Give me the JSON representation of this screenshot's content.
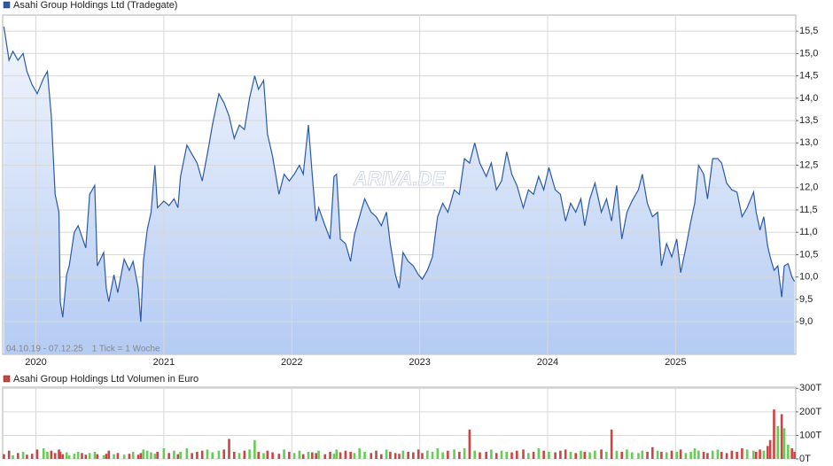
{
  "chart_data": [
    {
      "type": "area",
      "watermark": "ARIVA.DE",
      "annotations": [
        "04.10.19 - 07.12.25",
        "1 Tick = 1 Woche"
      ],
      "x": [
        2019.75,
        2019.79,
        2019.82,
        2019.86,
        2019.9,
        2019.93,
        2019.97,
        2020.01,
        2020.06,
        2020.09,
        2020.12,
        2020.15,
        2020.18,
        2020.19,
        2020.21,
        2020.24,
        2020.26,
        2020.3,
        2020.33,
        2020.36,
        2020.39,
        2020.42,
        2020.46,
        2020.48,
        2020.53,
        2020.55,
        2020.57,
        2020.61,
        2020.64,
        2020.69,
        2020.73,
        2020.76,
        2020.8,
        2020.82,
        2020.84,
        2020.87,
        2020.9,
        2020.93,
        2020.95,
        2021.0,
        2021.04,
        2021.08,
        2021.11,
        2021.13,
        2021.18,
        2021.22,
        2021.26,
        2021.3,
        2021.34,
        2021.38,
        2021.43,
        2021.47,
        2021.51,
        2021.55,
        2021.59,
        2021.63,
        2021.67,
        2021.71,
        2021.74,
        2021.78,
        2021.81,
        2021.85,
        2021.9,
        2021.94,
        2021.98,
        2022.02,
        2022.06,
        2022.09,
        2022.13,
        2022.16,
        2022.19,
        2022.21,
        2022.26,
        2022.3,
        2022.33,
        2022.35,
        2022.38,
        2022.42,
        2022.46,
        2022.49,
        2022.53,
        2022.57,
        2022.62,
        2022.66,
        2022.7,
        2022.74,
        2022.77,
        2022.81,
        2022.84,
        2022.87,
        2022.91,
        2022.95,
        2022.99,
        2023.02,
        2023.06,
        2023.1,
        2023.14,
        2023.18,
        2023.22,
        2023.27,
        2023.31,
        2023.35,
        2023.39,
        2023.43,
        2023.47,
        2023.52,
        2023.56,
        2023.6,
        2023.64,
        2023.68,
        2023.72,
        2023.76,
        2023.81,
        2023.85,
        2023.89,
        2023.93,
        2023.97,
        2024.01,
        2024.06,
        2024.1,
        2024.14,
        2024.18,
        2024.22,
        2024.26,
        2024.29,
        2024.33,
        2024.37,
        2024.42,
        2024.46,
        2024.5,
        2024.54,
        2024.58,
        2024.62,
        2024.66,
        2024.71,
        2024.74,
        2024.78,
        2024.82,
        2024.86,
        2024.89,
        2024.93,
        2024.97,
        2025.01,
        2025.04,
        2025.08,
        2025.12,
        2025.15,
        2025.18,
        2025.22,
        2025.25,
        2025.29,
        2025.33,
        2025.36,
        2025.4,
        2025.44,
        2025.48,
        2025.52,
        2025.56,
        2025.61,
        2025.63,
        2025.66,
        2025.69,
        2025.72,
        2025.74,
        2025.77,
        2025.8,
        2025.83,
        2025.85,
        2025.88,
        2025.91,
        2025.93
      ],
      "series": [
        {
          "name": "Asahi Group Holdings Ltd (Tradegate)",
          "color": "#2a5aa8",
          "values": [
            15.6,
            14.85,
            15.05,
            14.85,
            15.0,
            14.6,
            14.3,
            14.1,
            14.45,
            14.6,
            13.6,
            11.85,
            11.45,
            9.45,
            9.1,
            10.05,
            10.25,
            11.0,
            11.15,
            10.9,
            10.65,
            11.85,
            12.05,
            10.25,
            10.55,
            9.75,
            9.45,
            10.05,
            9.65,
            10.4,
            10.15,
            10.35,
            9.75,
            9.0,
            10.35,
            11.05,
            11.45,
            12.5,
            11.55,
            11.7,
            11.6,
            11.75,
            11.55,
            12.25,
            12.95,
            12.75,
            12.55,
            12.15,
            12.75,
            13.4,
            14.1,
            13.9,
            13.6,
            13.1,
            13.4,
            13.3,
            14.0,
            14.5,
            14.2,
            14.4,
            13.2,
            12.7,
            11.85,
            12.3,
            12.15,
            12.3,
            12.5,
            12.3,
            13.4,
            12.3,
            11.25,
            11.55,
            11.15,
            10.85,
            12.25,
            12.3,
            10.85,
            10.75,
            10.35,
            10.95,
            11.35,
            11.75,
            11.45,
            11.35,
            11.15,
            11.45,
            10.75,
            10.05,
            9.75,
            10.55,
            10.35,
            10.25,
            10.05,
            9.95,
            10.15,
            10.45,
            11.35,
            11.65,
            11.45,
            11.95,
            11.85,
            12.65,
            12.55,
            13.0,
            12.55,
            12.25,
            12.55,
            11.95,
            12.15,
            12.8,
            12.3,
            12.05,
            11.55,
            11.95,
            11.85,
            12.25,
            11.95,
            12.45,
            11.95,
            11.85,
            11.25,
            11.65,
            11.45,
            11.75,
            11.15,
            11.75,
            12.1,
            11.45,
            11.75,
            11.25,
            12.05,
            10.85,
            11.45,
            11.7,
            11.95,
            12.3,
            11.65,
            11.35,
            11.45,
            10.25,
            10.75,
            10.45,
            10.85,
            10.1,
            10.65,
            11.25,
            11.65,
            12.5,
            12.3,
            11.75,
            12.65,
            12.65,
            12.55,
            12.1,
            11.95,
            11.9,
            11.35,
            11.55,
            11.9,
            11.45,
            11.05,
            11.35,
            10.7,
            10.45,
            10.15,
            10.25,
            9.55,
            10.25,
            10.3,
            10.0,
            9.9
          ]
        }
      ],
      "xlim": [
        2019.74,
        2025.94
      ],
      "xticks": [
        2020,
        2021,
        2022,
        2023,
        2024,
        2025
      ],
      "ylim": [
        8.27,
        15.86
      ],
      "yticks": [
        {
          "value": 9.0,
          "label": "9,0"
        },
        {
          "value": 9.5,
          "label": "9,5"
        },
        {
          "value": 10.0,
          "label": "10,0"
        },
        {
          "value": 10.5,
          "label": "10,5"
        },
        {
          "value": 11.0,
          "label": "11,0"
        },
        {
          "value": 11.5,
          "label": "11,5"
        },
        {
          "value": 12.0,
          "label": "12,0"
        },
        {
          "value": 12.5,
          "label": "12,5"
        },
        {
          "value": 13.0,
          "label": "13,0"
        },
        {
          "value": 13.5,
          "label": "13,5"
        },
        {
          "value": 14.0,
          "label": "14,0"
        },
        {
          "value": 14.5,
          "label": "14,5"
        },
        {
          "value": 15.0,
          "label": "15,0"
        },
        {
          "value": 15.5,
          "label": "15,5"
        }
      ],
      "grid": true
    },
    {
      "type": "bar",
      "x": [
        2019.75,
        2019.79,
        2019.82,
        2019.86,
        2019.9,
        2019.93,
        2019.97,
        2020.01,
        2020.06,
        2020.09,
        2020.12,
        2020.15,
        2020.18,
        2020.19,
        2020.21,
        2020.24,
        2020.26,
        2020.3,
        2020.33,
        2020.36,
        2020.39,
        2020.42,
        2020.46,
        2020.48,
        2020.53,
        2020.55,
        2020.57,
        2020.61,
        2020.64,
        2020.69,
        2020.73,
        2020.76,
        2020.8,
        2020.82,
        2020.84,
        2020.87,
        2020.9,
        2020.93,
        2020.95,
        2021.0,
        2021.04,
        2021.08,
        2021.11,
        2021.13,
        2021.18,
        2021.22,
        2021.26,
        2021.3,
        2021.34,
        2021.38,
        2021.43,
        2021.47,
        2021.51,
        2021.55,
        2021.59,
        2021.63,
        2021.67,
        2021.71,
        2021.74,
        2021.78,
        2021.81,
        2021.85,
        2021.9,
        2021.94,
        2021.98,
        2022.02,
        2022.06,
        2022.09,
        2022.13,
        2022.16,
        2022.19,
        2022.21,
        2022.26,
        2022.3,
        2022.33,
        2022.35,
        2022.38,
        2022.42,
        2022.46,
        2022.49,
        2022.53,
        2022.57,
        2022.62,
        2022.66,
        2022.7,
        2022.74,
        2022.77,
        2022.81,
        2022.84,
        2022.87,
        2022.91,
        2022.95,
        2022.99,
        2023.02,
        2023.06,
        2023.1,
        2023.14,
        2023.18,
        2023.22,
        2023.27,
        2023.31,
        2023.35,
        2023.39,
        2023.43,
        2023.47,
        2023.52,
        2023.56,
        2023.6,
        2023.64,
        2023.68,
        2023.72,
        2023.76,
        2023.81,
        2023.85,
        2023.89,
        2023.93,
        2023.97,
        2024.01,
        2024.06,
        2024.1,
        2024.14,
        2024.18,
        2024.22,
        2024.26,
        2024.29,
        2024.33,
        2024.37,
        2024.42,
        2024.46,
        2024.5,
        2024.54,
        2024.58,
        2024.62,
        2024.66,
        2024.71,
        2024.74,
        2024.78,
        2024.82,
        2024.86,
        2024.89,
        2024.93,
        2024.97,
        2025.01,
        2025.04,
        2025.08,
        2025.12,
        2025.15,
        2025.18,
        2025.22,
        2025.25,
        2025.29,
        2025.33,
        2025.36,
        2025.4,
        2025.44,
        2025.48,
        2025.52,
        2025.56,
        2025.61,
        2025.63,
        2025.66,
        2025.69,
        2025.72,
        2025.74,
        2025.77,
        2025.8,
        2025.83,
        2025.85,
        2025.88,
        2025.91,
        2025.93
      ],
      "series": [
        {
          "name": "Asahi Group Holdings Ltd Volumen in Euro",
          "color": "#cc4444",
          "up_color": "#66cc55",
          "values": [
            20,
            35,
            15,
            25,
            30,
            18,
            22,
            40,
            45,
            30,
            35,
            25,
            40,
            30,
            20,
            28,
            15,
            22,
            30,
            25,
            18,
            25,
            30,
            20,
            15,
            22,
            35,
            20,
            25,
            18,
            22,
            30,
            18,
            25,
            40,
            35,
            28,
            22,
            30,
            45,
            25,
            35,
            20,
            30,
            45,
            25,
            30,
            35,
            40,
            28,
            35,
            40,
            85,
            30,
            25,
            35,
            40,
            80,
            30,
            25,
            35,
            28,
            22,
            40,
            30,
            25,
            35,
            20,
            30,
            28,
            25,
            35,
            20,
            30,
            22,
            40,
            28,
            35,
            30,
            25,
            45,
            30,
            25,
            35,
            20,
            40,
            30,
            25,
            22,
            35,
            30,
            28,
            40,
            25,
            35,
            30,
            45,
            28,
            35,
            40,
            30,
            45,
            125,
            35,
            28,
            30,
            40,
            25,
            35,
            30,
            28,
            35,
            40,
            25,
            30,
            45,
            35,
            30,
            28,
            35,
            40,
            30,
            25,
            35,
            30,
            28,
            35,
            40,
            30,
            125,
            35,
            30,
            40,
            28,
            25,
            35,
            30,
            50,
            35,
            30,
            28,
            35,
            30,
            40,
            25,
            30,
            45,
            35,
            30,
            25,
            35,
            40,
            30,
            25,
            35,
            30,
            45,
            40,
            35,
            30,
            40,
            35,
            55,
            80,
            210,
            140,
            190,
            130,
            60,
            45,
            30
          ]
        }
      ],
      "xlim": [
        2019.74,
        2025.94
      ],
      "xticks": [
        2020,
        2021,
        2022,
        2023,
        2024,
        2025
      ],
      "ylim": [
        0,
        305
      ],
      "yticks": [
        {
          "value": 0,
          "label": "0T"
        },
        {
          "value": 100,
          "label": "100T"
        },
        {
          "value": 200,
          "label": "200T"
        },
        {
          "value": 300,
          "label": "300T"
        }
      ],
      "grid": true
    }
  ]
}
